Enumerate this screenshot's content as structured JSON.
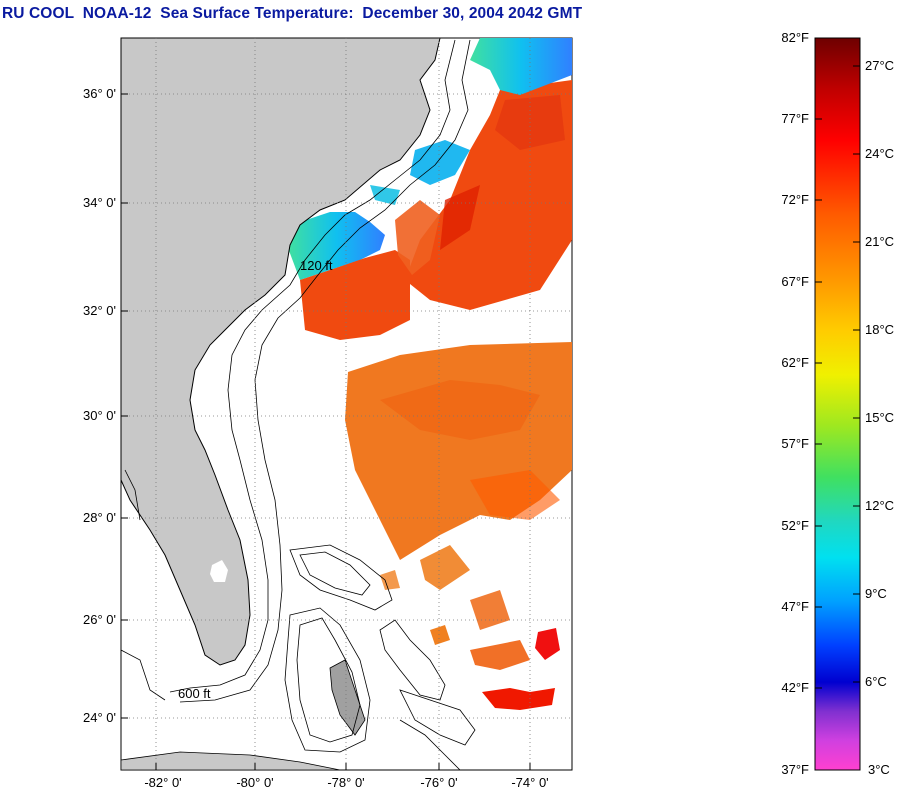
{
  "title": "RU COOL  NOAA-12  Sea Surface Temperature:  December 30, 2004 2042 GMT",
  "map": {
    "lat_labels": [
      "36° 0'",
      "34° 0'",
      "32° 0'",
      "30° 0'",
      "28° 0'",
      "26° 0'",
      "24° 0'"
    ],
    "lon_labels": [
      "-82° 0'",
      "-80° 0'",
      "-78° 0'",
      "-76° 0'",
      "-74° 0'"
    ],
    "contour_labels": [
      "120 ft",
      "600 ft"
    ]
  },
  "colorbar": {
    "f_labels": [
      "82°F",
      "77°F",
      "72°F",
      "67°F",
      "62°F",
      "57°F",
      "52°F",
      "47°F",
      "42°F",
      "37°F"
    ],
    "c_labels": [
      "27°C",
      "24°C",
      "21°C",
      "18°C",
      "15°C",
      "12°C",
      "9°C",
      "6°C",
      "3°C"
    ]
  },
  "colors": {
    "title": "#0a1aa0",
    "land": "#c8c8c8",
    "warm": "#f05a10",
    "cool": "#20c8e8"
  }
}
